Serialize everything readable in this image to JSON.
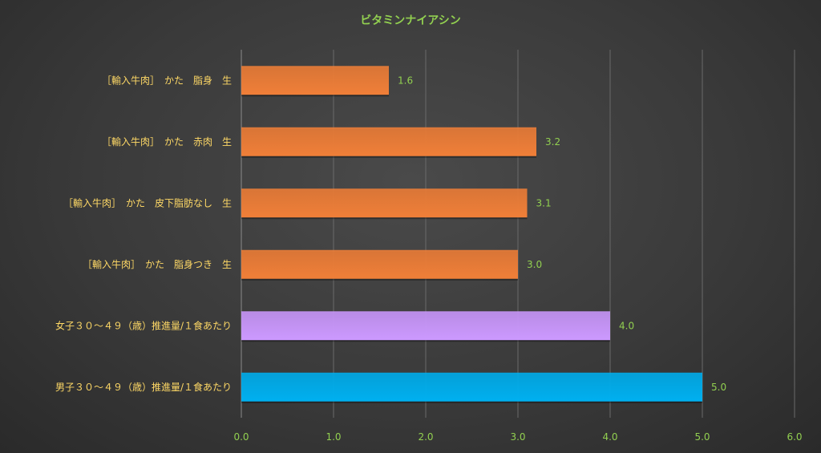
{
  "chart_data": {
    "type": "bar",
    "orientation": "horizontal",
    "title": "ビタミンナイアシン",
    "xlabel": "",
    "ylabel": "",
    "xlim": [
      0,
      6
    ],
    "x_ticks": [
      "0.0",
      "1.0",
      "2.0",
      "3.0",
      "4.0",
      "5.0",
      "6.0"
    ],
    "grid": true,
    "legend": "none",
    "categories": [
      "［輸入牛肉］　かた　脂身　生",
      "［輸入牛肉］　かた　赤肉　生",
      "［輸入牛肉］　かた　皮下脂肪なし　生",
      "［輸入牛肉］　かた　脂身つき　生",
      "女子３０～４９（歳）推進量/１食あたり",
      "男子３０～４９（歳）推進量/１食あたり"
    ],
    "values": [
      1.6,
      3.2,
      3.1,
      3.0,
      4.0,
      5.0
    ],
    "value_labels": [
      "1.6",
      "3.2",
      "3.1",
      "3.0",
      "4.0",
      "5.0"
    ],
    "bar_colors": [
      "#f07f38",
      "#f07f38",
      "#f07f38",
      "#f07f38",
      "#cc99ff",
      "#00b0f0"
    ]
  }
}
